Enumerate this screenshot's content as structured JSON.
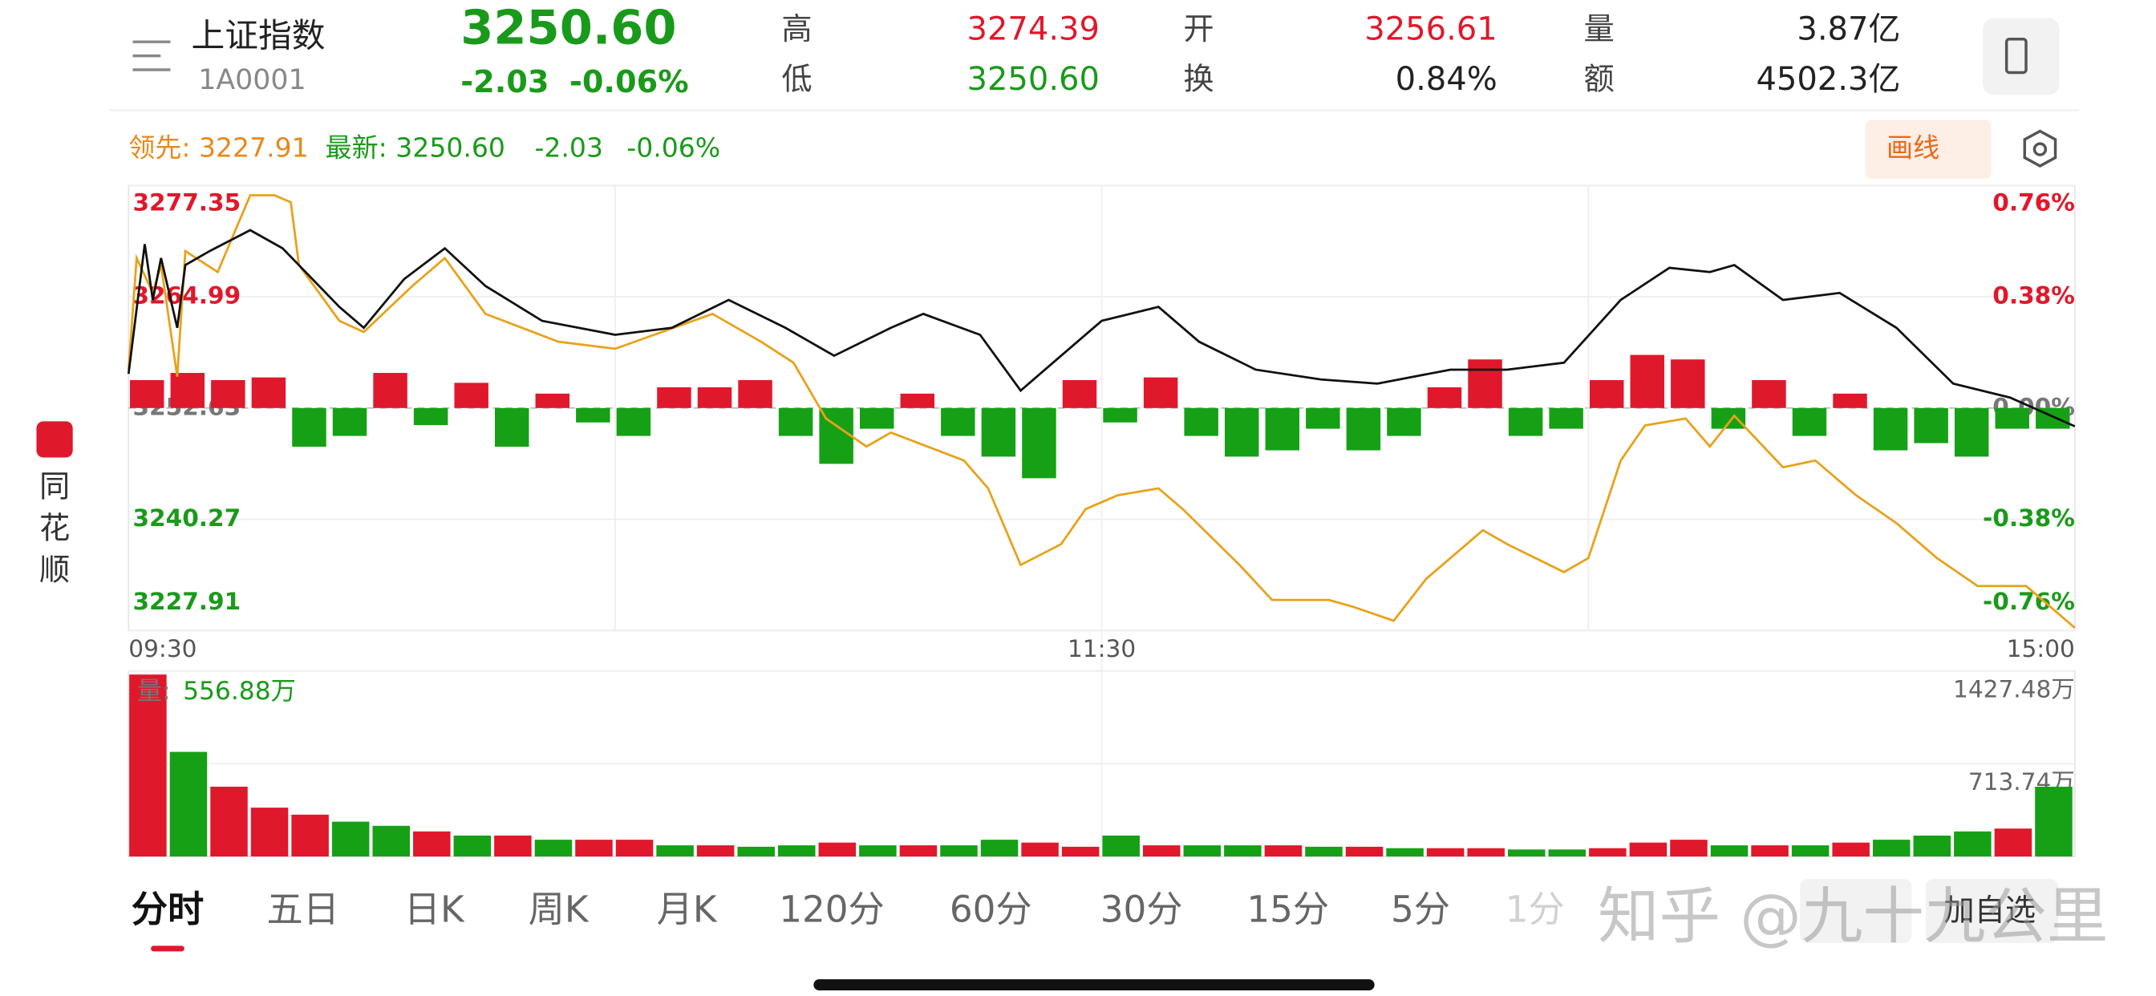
{
  "header": {
    "name": "上证指数",
    "code": "1A0001",
    "price": "3250.60",
    "change": "-2.03",
    "change_pct": "-0.06%",
    "stats": [
      {
        "label": "高",
        "value": "3274.39",
        "color": "#e0182b"
      },
      {
        "label": "低",
        "value": "3250.60",
        "color": "#1a9a1a"
      },
      {
        "label": "开",
        "value": "3256.61",
        "color": "#e0182b"
      },
      {
        "label": "换",
        "value": "0.84%",
        "color": "#222222"
      },
      {
        "label": "量",
        "value": "3.87亿",
        "color": "#222222"
      },
      {
        "label": "额",
        "value": "4502.3亿",
        "color": "#222222"
      }
    ]
  },
  "legend": {
    "lead": "领先: 3227.91",
    "latest": "最新: 3250.60",
    "change": "-2.03",
    "pct": "-0.06%"
  },
  "draw_button": "画线",
  "chart_data": [
    {
      "type": "line",
      "xlim": [
        0,
        240
      ],
      "xticks": [
        {
          "value": 0,
          "label": "09:30"
        },
        {
          "value": 120,
          "label": "11:30"
        },
        {
          "value": 240,
          "label": "15:00"
        }
      ],
      "xgrid": [
        60,
        180
      ],
      "ylim": [
        3227.91,
        3277.35
      ],
      "yticks": [
        3277.35,
        3264.99,
        3252.63,
        3240.27,
        3227.91
      ],
      "y2lim": [
        -0.76,
        0.76
      ],
      "y2ticks": [
        {
          "value": 0.76,
          "label": "0.76%"
        },
        {
          "value": 0.38,
          "label": "0.38%"
        },
        {
          "value": 0,
          "label": "0.00%"
        },
        {
          "value": -0.38,
          "label": "-0.38%"
        },
        {
          "value": -0.76,
          "label": "-0.76%"
        }
      ],
      "series": [
        {
          "color": "#111111",
          "x": [
            0,
            2,
            3,
            4,
            6,
            7,
            10,
            15,
            19,
            26,
            29,
            34,
            39,
            44,
            51,
            60,
            67,
            74,
            81,
            87,
            94,
            98,
            105,
            110,
            115,
            120,
            127,
            132,
            139,
            147,
            154,
            163,
            170,
            177,
            184,
            190,
            195,
            198,
            204,
            211,
            218,
            225,
            232,
            240
          ],
          "values": [
            3256.42,
            3270.84,
            3264.64,
            3269.29,
            3261.54,
            3268.51,
            3270.06,
            3272.39,
            3270.37,
            3263.86,
            3261.54,
            3266.96,
            3270.37,
            3266.19,
            3262.31,
            3260.76,
            3261.54,
            3264.64,
            3261.54,
            3258.44,
            3261.54,
            3263.09,
            3260.76,
            3254.56,
            3258.44,
            3262.31,
            3263.86,
            3259.99,
            3256.89,
            3255.8,
            3255.34,
            3256.89,
            3256.89,
            3257.66,
            3264.64,
            3268.2,
            3267.74,
            3268.51,
            3264.64,
            3265.41,
            3261.54,
            3255.34,
            3253.79,
            3250.6
          ]
        },
        {
          "color": "#e8a21a",
          "x": [
            0,
            1,
            3,
            4,
            6,
            7,
            11,
            15,
            18,
            20,
            21,
            26,
            29,
            35,
            39,
            44,
            53,
            60,
            72,
            78,
            82,
            86,
            91,
            94,
            103,
            106,
            110,
            115,
            118,
            122,
            127,
            130,
            137,
            141,
            148,
            151,
            156,
            160,
            167,
            170,
            177,
            180,
            184,
            187,
            192,
            195,
            198,
            204,
            208,
            213,
            218,
            223,
            228,
            234,
            240
          ],
          "values": [
            3256.89,
            3269.29,
            3265.41,
            3268.51,
            3256.11,
            3270.06,
            3267.74,
            3276.26,
            3276.26,
            3275.49,
            3268.51,
            3262.31,
            3261.07,
            3266.19,
            3269.29,
            3263.09,
            3259.99,
            3259.21,
            3263.09,
            3259.99,
            3257.66,
            3251.46,
            3248.36,
            3249.91,
            3246.81,
            3243.71,
            3235.19,
            3237.51,
            3241.39,
            3242.94,
            3243.71,
            3241.39,
            3235.19,
            3231.31,
            3231.31,
            3230.54,
            3228.99,
            3233.64,
            3239.06,
            3237.51,
            3234.41,
            3235.96,
            3246.81,
            3250.69,
            3251.46,
            3248.36,
            3251.77,
            3246.04,
            3246.81,
            3242.94,
            3239.84,
            3235.96,
            3232.86,
            3232.86,
            3228.21
          ]
        }
      ],
      "bars": {
        "up_color": "#e0182b",
        "down_color": "#16a016",
        "x": [
          0,
          5,
          10,
          15,
          20,
          25,
          30,
          35,
          40,
          45,
          50,
          55,
          60,
          65,
          70,
          75,
          80,
          85,
          90,
          95,
          100,
          105,
          110,
          115,
          120,
          125,
          130,
          135,
          140,
          145,
          150,
          155,
          160,
          165,
          170,
          175,
          180,
          185,
          190,
          195,
          200,
          205,
          210,
          215,
          220,
          225,
          230,
          235
        ],
        "values": [
          3.1,
          3.9,
          3.1,
          3.4,
          -4.3,
          -3.1,
          3.9,
          -1.9,
          2.8,
          -4.3,
          1.6,
          -1.6,
          -3.1,
          2.3,
          2.3,
          3.1,
          -3.1,
          -6.2,
          -2.3,
          1.6,
          -3.1,
          -5.4,
          -7.8,
          3.1,
          -1.6,
          3.4,
          -3.1,
          -5.4,
          -4.7,
          -2.3,
          -4.7,
          -3.1,
          2.3,
          5.4,
          -3.1,
          -2.3,
          3.1,
          5.9,
          5.4,
          -2.3,
          3.1,
          -3.1,
          1.6,
          -4.7,
          -3.9,
          -5.4,
          -2.3,
          -2.3
        ]
      }
    },
    {
      "type": "bar",
      "label": "量:",
      "value_text": "556.88万",
      "xlim": [
        0,
        240
      ],
      "ylim": [
        0,
        1427.48
      ],
      "yticks": [
        {
          "value": 1427.48,
          "label": "1427.48万"
        },
        {
          "value": 713.74,
          "label": "713.74万"
        }
      ],
      "x": [
        0,
        5,
        10,
        15,
        20,
        25,
        30,
        35,
        40,
        45,
        50,
        55,
        60,
        65,
        70,
        75,
        80,
        85,
        90,
        95,
        100,
        105,
        110,
        115,
        120,
        125,
        130,
        135,
        140,
        145,
        150,
        155,
        160,
        165,
        170,
        175,
        180,
        185,
        190,
        195,
        200,
        205,
        210,
        215,
        220,
        225,
        230,
        235
      ],
      "values": [
        1400,
        805,
        537,
        376,
        322,
        268,
        236,
        193,
        161,
        161,
        129,
        129,
        129,
        86,
        86,
        75,
        86,
        107,
        86,
        86,
        86,
        129,
        107,
        75,
        161,
        86,
        86,
        86,
        86,
        75,
        75,
        64,
        64,
        64,
        54,
        54,
        64,
        107,
        129,
        86,
        86,
        86,
        107,
        129,
        161,
        193,
        215,
        537
      ],
      "colors": [
        "#e0182b",
        "#16a016",
        "#e0182b",
        "#e0182b",
        "#e0182b",
        "#16a016",
        "#16a016",
        "#e0182b",
        "#16a016",
        "#e0182b",
        "#16a016",
        "#e0182b",
        "#e0182b",
        "#16a016",
        "#e0182b",
        "#16a016",
        "#16a016",
        "#e0182b",
        "#16a016",
        "#e0182b",
        "#16a016",
        "#16a016",
        "#e0182b",
        "#e0182b",
        "#16a016",
        "#e0182b",
        "#16a016",
        "#16a016",
        "#e0182b",
        "#16a016",
        "#e0182b",
        "#16a016",
        "#e0182b",
        "#e0182b",
        "#16a016",
        "#16a016",
        "#e0182b",
        "#e0182b",
        "#e0182b",
        "#16a016",
        "#e0182b",
        "#16a016",
        "#e0182b",
        "#16a016",
        "#16a016",
        "#16a016",
        "#e0182b",
        "#16a016"
      ]
    }
  ],
  "tabs": [
    "分时",
    "五日",
    "日K",
    "周K",
    "月K",
    "120分",
    "60分",
    "30分",
    "15分",
    "5分",
    "1分"
  ],
  "add_button": "加自选",
  "sidebar": "同花顺",
  "watermark": "知乎 @九十九公里"
}
